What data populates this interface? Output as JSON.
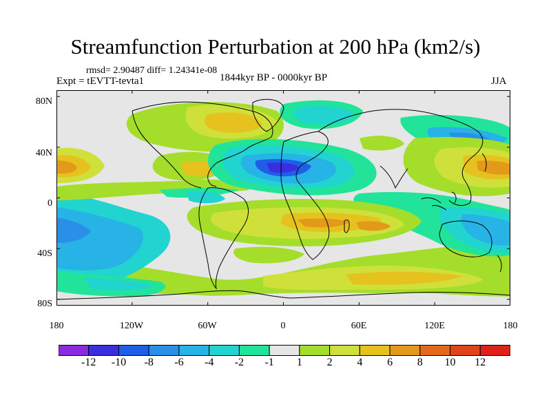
{
  "title": "Streamfunction Perturbation at 200 hPa (km2/s)",
  "stats": "rmsd= 2.90487 diff= 1.24341e-08",
  "experiment": "Expt = tEVTT-tevta1",
  "period": "1844kyr BP - 0000kyr BP",
  "season": "JJA",
  "axes": {
    "y_ticks": [
      "80N",
      "40N",
      "0",
      "40S",
      "80S"
    ],
    "y_values": [
      80,
      40,
      0,
      -40,
      -80
    ],
    "x_ticks": [
      "180",
      "120W",
      "60W",
      "0",
      "60E",
      "120E",
      "180"
    ],
    "x_values": [
      -180,
      -120,
      -60,
      0,
      60,
      120,
      180
    ]
  },
  "colorbar": {
    "labels": [
      "-12",
      "-10",
      "-8",
      "-6",
      "-4",
      "-2",
      "-1",
      "1",
      "2",
      "4",
      "6",
      "8",
      "10",
      "12"
    ],
    "colors": [
      "#8a2be2",
      "#3a2fe0",
      "#1f5ee8",
      "#2a8fe8",
      "#27b3e6",
      "#22d4d0",
      "#22e39a",
      "#e6e6e6",
      "#a5de2a",
      "#cfe03a",
      "#e6c21e",
      "#e39a1b",
      "#e36a1a",
      "#e0441a",
      "#e0201a"
    ]
  },
  "field_colors": {
    "neutral": "#e6e6e6",
    "pos1": "#a5de2a",
    "pos2": "#cfe03a",
    "pos4": "#e6c21e",
    "pos6": "#e39a1b",
    "pos8": "#e36a1a",
    "neg1": "#22e39a",
    "neg2": "#22d4d0",
    "neg4": "#27b3e6",
    "neg6": "#2a8fe8",
    "neg8": "#1f5ee8",
    "neg10": "#3a2fe0"
  }
}
